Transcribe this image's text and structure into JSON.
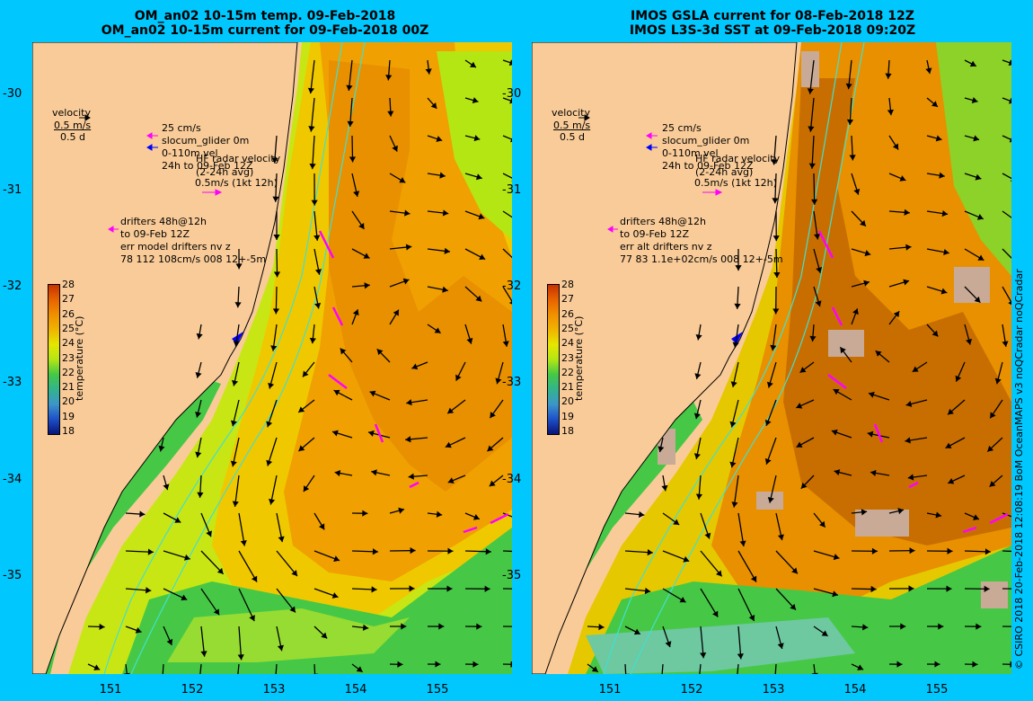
{
  "colors": {
    "background": "#00c8ff",
    "land": "#f9cb98",
    "drifter": "#ff00ff",
    "glider": "#0000ff",
    "isobath": "#40e0d0",
    "nodata": "#c8aa96"
  },
  "panels": [
    {
      "title_line1": "OM_an02 10-15m temp. 09-Feb-2018",
      "title_line2": "OM_an02 10-15m current for 09-Feb-2018 00Z",
      "legend": {
        "velocity_label": "velocity",
        "velocity_scale": "0.5 m/s",
        "velocity_time": "0.5 d",
        "glider_scale": "25 cm/s",
        "glider_label": "slocum_glider 0m",
        "glider_depth": "0-110m vel",
        "radar_label": "HF radar velocity",
        "radar_window": "24h to 09-Feb 12Z",
        "radar_avg": "(2-24h avg)",
        "radar_scale": "0.5m/s (1kt 12h)",
        "drifters_line1": "drifters 48h@12h",
        "drifters_line2": "to 09-Feb 12Z",
        "drifters_line3": "err model drifters nv z",
        "drifters_line4": "78 112 108cm/s 008 12+-5m"
      }
    },
    {
      "title_line1": "IMOS GSLA current for 08-Feb-2018 12Z",
      "title_line2": "IMOS L3S-3d SST at 09-Feb-2018 09:20Z",
      "legend": {
        "velocity_label": "velocity",
        "velocity_scale": "0.5 m/s",
        "velocity_time": "0.5 d",
        "glider_scale": "25 cm/s",
        "glider_label": "slocum_glider 0m",
        "glider_depth": "0-110m vel",
        "radar_label": "HF radar velocity",
        "radar_window": "24h to 09-Feb 12Z",
        "radar_avg": "(2-24h avg)",
        "radar_scale": "0.5m/s (1kt 12h)",
        "drifters_line1": "drifters 48h@12h",
        "drifters_line2": "to 09-Feb 12Z",
        "drifters_line3": "err alt drifters nv z",
        "drifters_line4": "77 83 1.1e+02cm/s 008 12+-5m"
      }
    }
  ],
  "axes": {
    "lat_labels": [
      "-30",
      "-31",
      "-32",
      "-33",
      "-34",
      "-35"
    ],
    "lon_labels": [
      "151",
      "152",
      "153",
      "154",
      "155"
    ]
  },
  "colorbar": {
    "title": "temperature (°C)",
    "ticks": [
      "28",
      "27",
      "26",
      "25",
      "24",
      "23",
      "22",
      "21",
      "20",
      "19",
      "18"
    ],
    "colors": [
      "#c83200",
      "#e86400",
      "#f09000",
      "#f0b400",
      "#e6e600",
      "#b4e614",
      "#46c846",
      "#32b48c",
      "#3c96c8",
      "#1e50c8",
      "#0a1478"
    ]
  },
  "credit": "© CSIRO 2018  20-Feb-2018 12:08:19 BoM OceanMAPS v3 noQCradar noQCradar"
}
